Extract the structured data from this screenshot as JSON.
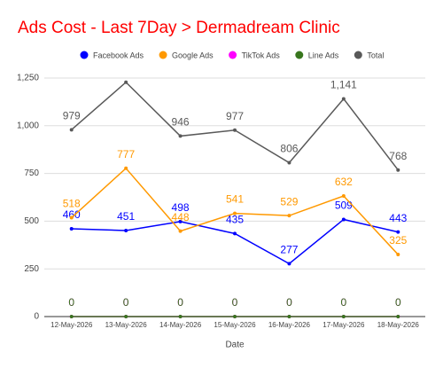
{
  "chart_data": {
    "type": "line",
    "title": "Ads Cost - Last 7Day > Dermadream Clinic",
    "x_label": "Date",
    "categories": [
      "12-May-2026",
      "13-May-2026",
      "14-May-2026",
      "15-May-2026",
      "16-May-2026",
      "17-May-2026",
      "18-May-2026"
    ],
    "series": [
      {
        "name": "Facebook Ads",
        "color": "#0000ff",
        "values": [
          460,
          451,
          498,
          435,
          277,
          509,
          443
        ]
      },
      {
        "name": "Google Ads",
        "color": "#ff9900",
        "values": [
          518,
          777,
          448,
          541,
          529,
          632,
          325
        ]
      },
      {
        "name": "TikTok Ads",
        "color": "#ff00ff",
        "values": [
          0,
          0,
          0,
          0,
          0,
          0,
          0
        ]
      },
      {
        "name": "Line Ads",
        "color": "#38761d",
        "values": [
          0,
          0,
          0,
          0,
          0,
          0,
          0
        ]
      },
      {
        "name": "Total",
        "color": "#595959",
        "values": [
          979,
          1228,
          946,
          977,
          806,
          1141,
          768
        ],
        "value_labels": [
          "979",
          null,
          "946",
          "977",
          "806",
          "1,141",
          "768"
        ]
      }
    ],
    "ylim": [
      0,
      1250
    ],
    "yticks": [
      0,
      250,
      500,
      750,
      {
        "value": 1000,
        "label": "1,000"
      },
      {
        "value": 1250,
        "label": "1,250"
      }
    ],
    "grid": true,
    "legend": "top"
  }
}
